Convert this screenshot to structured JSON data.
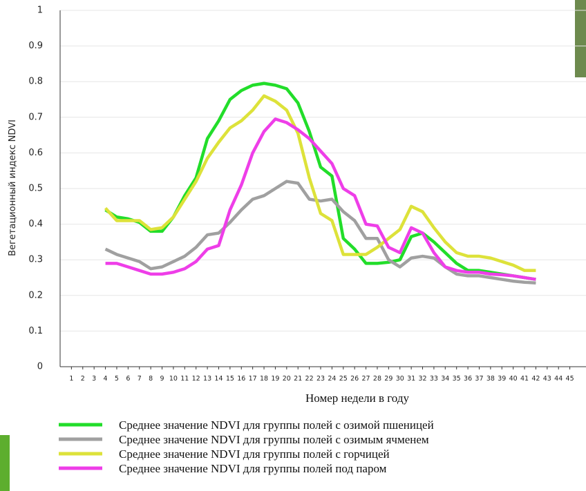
{
  "chart_data": {
    "type": "line",
    "y_label": "Вегетационный индекс NDVI",
    "x_label": "Номер недели в году",
    "x": [
      1,
      2,
      3,
      4,
      5,
      6,
      7,
      8,
      9,
      10,
      11,
      12,
      13,
      14,
      15,
      16,
      17,
      18,
      19,
      20,
      21,
      22,
      23,
      24,
      25,
      26,
      27,
      28,
      29,
      30,
      31,
      32,
      33,
      34,
      35,
      36,
      37,
      38,
      39,
      40,
      41,
      42,
      43,
      44,
      45
    ],
    "xlim": [
      0,
      46
    ],
    "xticks": [
      1,
      2,
      3,
      4,
      5,
      6,
      7,
      8,
      9,
      10,
      11,
      12,
      13,
      14,
      15,
      16,
      17,
      18,
      19,
      20,
      21,
      22,
      23,
      24,
      25,
      26,
      27,
      28,
      29,
      30,
      31,
      32,
      33,
      34,
      35,
      36,
      37,
      38,
      39,
      40,
      41,
      42,
      43,
      44,
      45
    ],
    "ylim": [
      0,
      1
    ],
    "yticks": [
      0,
      0.1,
      0.2,
      0.3,
      0.4,
      0.5,
      0.6,
      0.7,
      0.8,
      0.9,
      1
    ],
    "grid": true,
    "series": [
      {
        "name": "Среднее значение NDVI для группы полей с озимой пшеницей",
        "color": "#22dd2a",
        "values": [
          null,
          null,
          null,
          0.44,
          0.42,
          0.415,
          0.405,
          0.38,
          0.38,
          0.42,
          0.48,
          0.53,
          0.64,
          0.69,
          0.75,
          0.775,
          0.79,
          0.795,
          0.79,
          0.78,
          0.74,
          0.66,
          0.56,
          0.535,
          0.36,
          0.33,
          0.29,
          0.29,
          0.293,
          0.3,
          0.365,
          0.375,
          0.35,
          0.32,
          0.29,
          0.27,
          0.27,
          0.265,
          0.26,
          0.255,
          0.25,
          0.245,
          null,
          null,
          null
        ]
      },
      {
        "name": "Среднее значение NDVI для группы полей с озимым ячменем",
        "color": "#a0a0a0",
        "values": [
          null,
          null,
          null,
          0.33,
          0.315,
          0.305,
          0.295,
          0.275,
          0.28,
          0.295,
          0.31,
          0.335,
          0.37,
          0.375,
          0.405,
          0.44,
          0.47,
          0.48,
          0.5,
          0.52,
          0.515,
          0.47,
          0.465,
          0.47,
          0.435,
          0.41,
          0.36,
          0.36,
          0.3,
          0.28,
          0.305,
          0.31,
          0.305,
          0.28,
          0.26,
          0.255,
          0.255,
          0.25,
          0.245,
          0.24,
          0.237,
          0.235,
          null,
          null,
          null
        ]
      },
      {
        "name": "Среднее значение NDVI для группы полей с горчицей",
        "color": "#dde23a",
        "values": [
          null,
          null,
          null,
          0.445,
          0.41,
          0.41,
          0.41,
          0.385,
          0.39,
          0.42,
          0.47,
          0.52,
          0.585,
          0.63,
          0.67,
          0.69,
          0.72,
          0.76,
          0.745,
          0.72,
          0.655,
          0.53,
          0.43,
          0.41,
          0.315,
          0.315,
          0.315,
          0.335,
          0.36,
          0.385,
          0.45,
          0.435,
          0.39,
          0.35,
          0.32,
          0.31,
          0.31,
          0.305,
          0.295,
          0.285,
          0.27,
          0.27,
          null,
          null,
          null
        ]
      },
      {
        "name": "Среднее значение NDVI для группы полей под паром",
        "color": "#ee3ee8",
        "values": [
          null,
          null,
          null,
          0.29,
          0.29,
          0.28,
          0.27,
          0.26,
          0.26,
          0.265,
          0.275,
          0.295,
          0.33,
          0.34,
          0.44,
          0.51,
          0.6,
          0.66,
          0.695,
          0.685,
          0.665,
          0.64,
          0.605,
          0.57,
          0.5,
          0.48,
          0.4,
          0.395,
          0.335,
          0.32,
          0.39,
          0.375,
          0.32,
          0.28,
          0.27,
          0.265,
          0.265,
          0.26,
          0.258,
          0.255,
          0.25,
          0.245,
          null,
          null,
          null
        ]
      }
    ]
  }
}
